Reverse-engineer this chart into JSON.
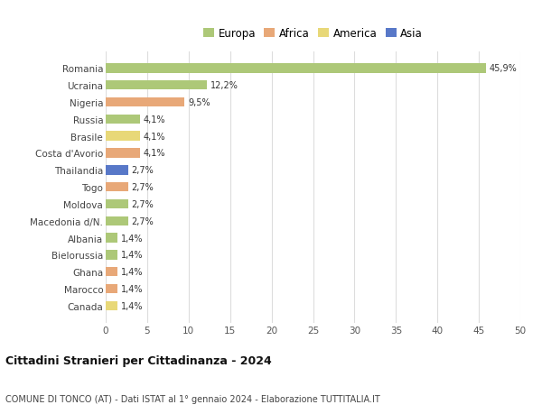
{
  "countries": [
    "Romania",
    "Ucraina",
    "Nigeria",
    "Russia",
    "Brasile",
    "Costa d'Avorio",
    "Thailandia",
    "Togo",
    "Moldova",
    "Macedonia d/N.",
    "Albania",
    "Bielorussia",
    "Ghana",
    "Marocco",
    "Canada"
  ],
  "values": [
    45.9,
    12.2,
    9.5,
    4.1,
    4.1,
    4.1,
    2.7,
    2.7,
    2.7,
    2.7,
    1.4,
    1.4,
    1.4,
    1.4,
    1.4
  ],
  "labels": [
    "45,9%",
    "12,2%",
    "9,5%",
    "4,1%",
    "4,1%",
    "4,1%",
    "2,7%",
    "2,7%",
    "2,7%",
    "2,7%",
    "1,4%",
    "1,4%",
    "1,4%",
    "1,4%",
    "1,4%"
  ],
  "colors": [
    "#adc878",
    "#adc878",
    "#e8a878",
    "#adc878",
    "#e8d878",
    "#e8a878",
    "#5878c8",
    "#e8a878",
    "#adc878",
    "#adc878",
    "#adc878",
    "#adc878",
    "#e8a878",
    "#e8a878",
    "#e8d878"
  ],
  "legend_labels": [
    "Europa",
    "Africa",
    "America",
    "Asia"
  ],
  "legend_colors": [
    "#adc878",
    "#e8a878",
    "#e8d878",
    "#5878c8"
  ],
  "title": "Cittadini Stranieri per Cittadinanza - 2024",
  "subtitle": "COMUNE DI TONCO (AT) - Dati ISTAT al 1° gennaio 2024 - Elaborazione TUTTITALIA.IT",
  "xlim": [
    0,
    50
  ],
  "xticks": [
    0,
    5,
    10,
    15,
    20,
    25,
    30,
    35,
    40,
    45,
    50
  ],
  "bg_color": "#ffffff",
  "grid_color": "#dddddd",
  "bar_height": 0.55
}
